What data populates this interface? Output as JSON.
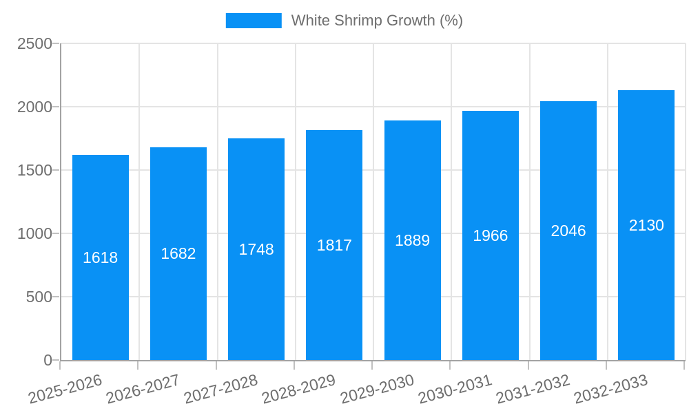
{
  "chart_data": {
    "type": "bar",
    "series_name": "White Shrimp Growth (%)",
    "categories": [
      "2025-2026",
      "2026-2027",
      "2027-2028",
      "2028-2029",
      "2029-2030",
      "2030-2031",
      "2031-2032",
      "2032-2033"
    ],
    "values": [
      1618,
      1682,
      1748,
      1817,
      1889,
      1966,
      2046,
      2130
    ],
    "yticks": [
      0,
      500,
      1000,
      1500,
      2000,
      2500
    ],
    "ylim": [
      0,
      2500
    ],
    "xlabel": "",
    "ylabel": "",
    "title": "",
    "grid": true,
    "legend_position": "top-center",
    "x_label_rotation_deg": -15,
    "value_labels": "centered-white-inside-bars"
  },
  "style": {
    "bar_color": "#0991F5",
    "value_label_color": "#FFFFFF",
    "axis_text_color": "#6E6E6E",
    "legend_text_color": "#6E6E6E",
    "grid_color": "#E4E4E4",
    "axis_line_color": "#A3A3A3",
    "tick_color": "#C0C0C0",
    "background_color": "#FFFFFF"
  }
}
